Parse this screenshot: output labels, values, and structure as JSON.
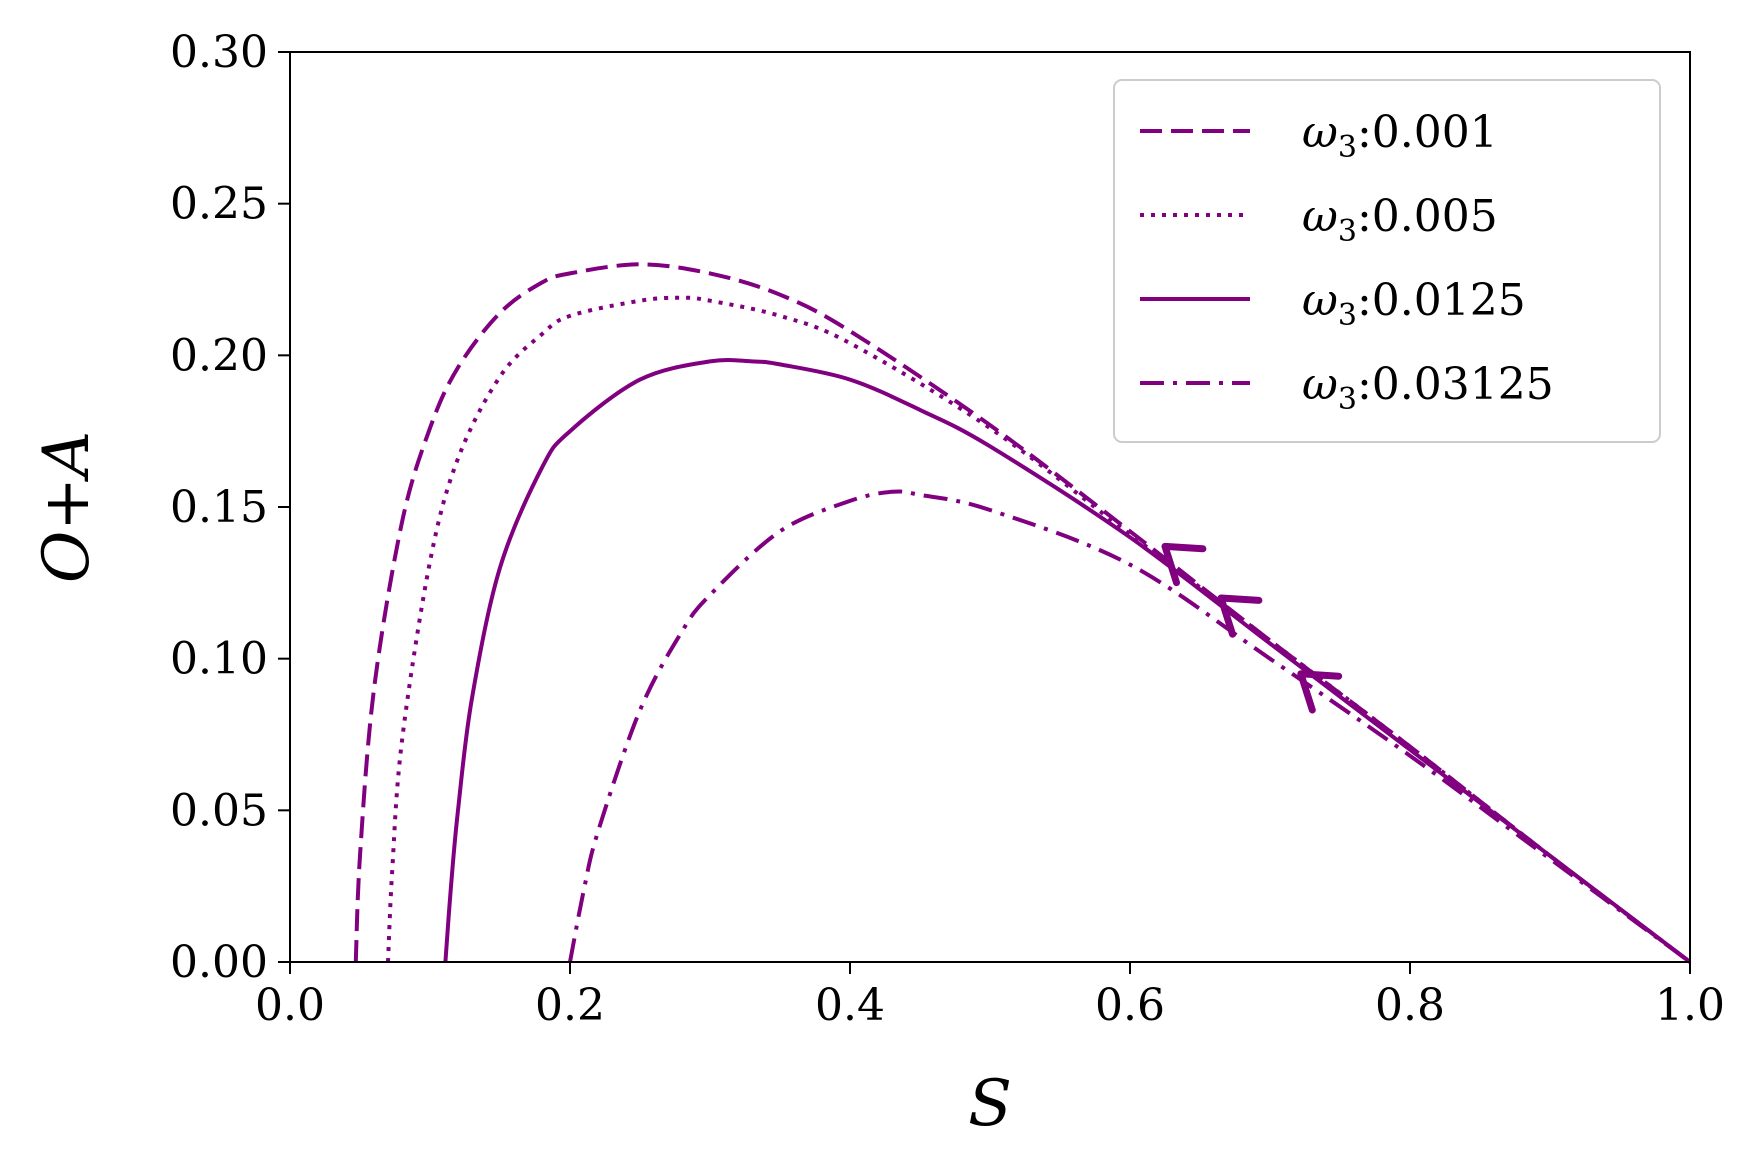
{
  "chart_data": {
    "type": "line",
    "xlabel": "S",
    "ylabel": "O+A",
    "xlim": [
      0.0,
      1.0
    ],
    "ylim": [
      0.0,
      0.3
    ],
    "x_ticks": [
      "0.0",
      "0.2",
      "0.4",
      "0.6",
      "0.8",
      "1.0"
    ],
    "y_ticks": [
      "0.00",
      "0.05",
      "0.10",
      "0.15",
      "0.20",
      "0.25",
      "0.30"
    ],
    "grid": false,
    "legend_position": "top-right",
    "color": "#800080",
    "series": [
      {
        "name": "ω3:0.001",
        "legend_symbol": "ω",
        "legend_sub": "3",
        "legend_value": ":0.001",
        "linestyle": "dashed",
        "x": [
          0.047,
          0.05,
          0.06,
          0.08,
          0.1,
          0.12,
          0.15,
          0.18,
          0.2,
          0.25,
          0.3,
          0.35,
          0.4,
          0.5,
          0.6,
          0.7,
          0.8,
          0.9,
          1.0
        ],
        "y": [
          0.0,
          0.035,
          0.09,
          0.145,
          0.176,
          0.196,
          0.214,
          0.224,
          0.227,
          0.23,
          0.227,
          0.22,
          0.208,
          0.177,
          0.142,
          0.106,
          0.071,
          0.035,
          0.0
        ]
      },
      {
        "name": "ω3:0.005",
        "legend_symbol": "ω",
        "legend_sub": "3",
        "legend_value": ":0.005",
        "linestyle": "dotted",
        "x": [
          0.07,
          0.073,
          0.08,
          0.1,
          0.12,
          0.15,
          0.18,
          0.2,
          0.25,
          0.28,
          0.3,
          0.35,
          0.4,
          0.5,
          0.6,
          0.7,
          0.8,
          0.9,
          1.0
        ],
        "y": [
          0.0,
          0.03,
          0.073,
          0.132,
          0.166,
          0.193,
          0.207,
          0.213,
          0.218,
          0.219,
          0.218,
          0.213,
          0.204,
          0.176,
          0.141,
          0.106,
          0.071,
          0.035,
          0.0
        ]
      },
      {
        "name": "ω3:0.0125",
        "legend_symbol": "ω",
        "legend_sub": "3",
        "legend_value": ":0.0125",
        "linestyle": "solid",
        "x": [
          0.111,
          0.115,
          0.12,
          0.13,
          0.15,
          0.18,
          0.2,
          0.25,
          0.3,
          0.33,
          0.35,
          0.4,
          0.45,
          0.5,
          0.6,
          0.7,
          0.8,
          0.9,
          1.0
        ],
        "y": [
          0.0,
          0.025,
          0.05,
          0.087,
          0.13,
          0.163,
          0.175,
          0.192,
          0.198,
          0.198,
          0.197,
          0.192,
          0.182,
          0.17,
          0.14,
          0.105,
          0.07,
          0.035,
          0.0
        ]
      },
      {
        "name": "ω3:0.03125",
        "legend_symbol": "ω",
        "legend_sub": "3",
        "legend_value": ":0.03125",
        "linestyle": "dashdot",
        "x": [
          0.2,
          0.21,
          0.22,
          0.25,
          0.28,
          0.3,
          0.35,
          0.4,
          0.43,
          0.45,
          0.5,
          0.6,
          0.7,
          0.8,
          0.9,
          1.0
        ],
        "y": [
          0.0,
          0.024,
          0.043,
          0.083,
          0.109,
          0.121,
          0.142,
          0.152,
          0.155,
          0.154,
          0.149,
          0.131,
          0.1,
          0.068,
          0.034,
          0.0
        ]
      }
    ],
    "arrows": [
      {
        "x": 0.625,
        "y": 0.137,
        "direction": "up-left"
      },
      {
        "x": 0.665,
        "y": 0.12,
        "direction": "up-left"
      },
      {
        "x": 0.722,
        "y": 0.095,
        "direction": "up-left"
      }
    ]
  }
}
